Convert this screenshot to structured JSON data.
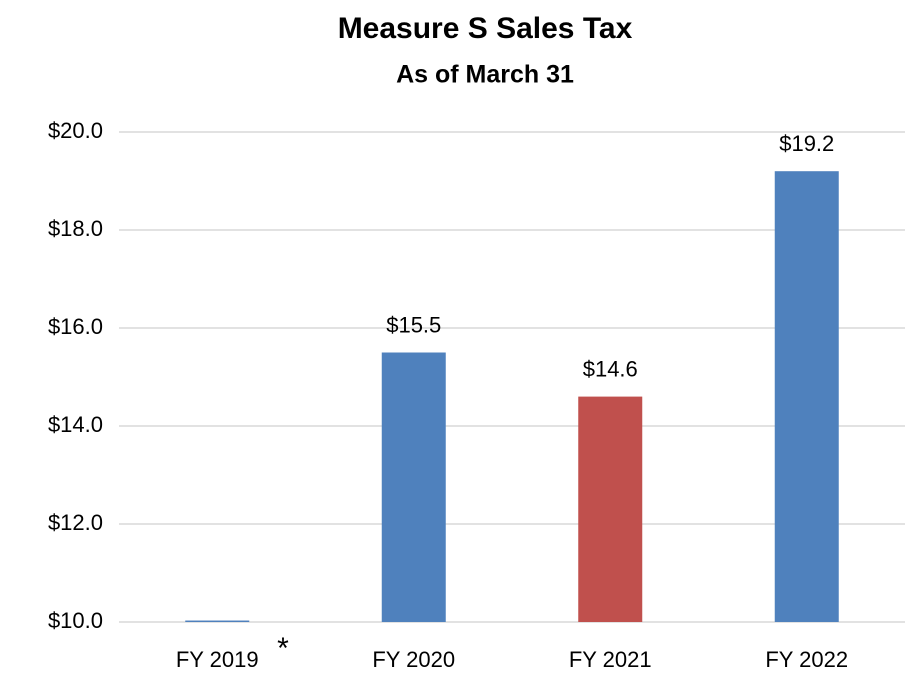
{
  "chart_data": {
    "type": "bar",
    "title": "Measure S Sales Tax",
    "subtitle": "As of March 31",
    "categories": [
      "FY 2019",
      "FY 2020",
      "FY 2021",
      "FY 2022"
    ],
    "values": [
      10.03,
      15.5,
      14.6,
      19.2
    ],
    "value_labels": [
      null,
      "$15.5",
      "$14.6",
      "$19.2"
    ],
    "colors": [
      "#4f81bd",
      "#4f81bd",
      "#c0504d",
      "#4f81bd"
    ],
    "annotation": "*",
    "ylim": [
      10,
      20
    ],
    "yticks": [
      {
        "value": 10,
        "label": "$10.0"
      },
      {
        "value": 12,
        "label": "$12.0"
      },
      {
        "value": 14,
        "label": "$14.0"
      },
      {
        "value": 16,
        "label": "$16.0"
      },
      {
        "value": 18,
        "label": "$18.0"
      },
      {
        "value": 20,
        "label": "$20.0"
      }
    ],
    "grid": true
  }
}
